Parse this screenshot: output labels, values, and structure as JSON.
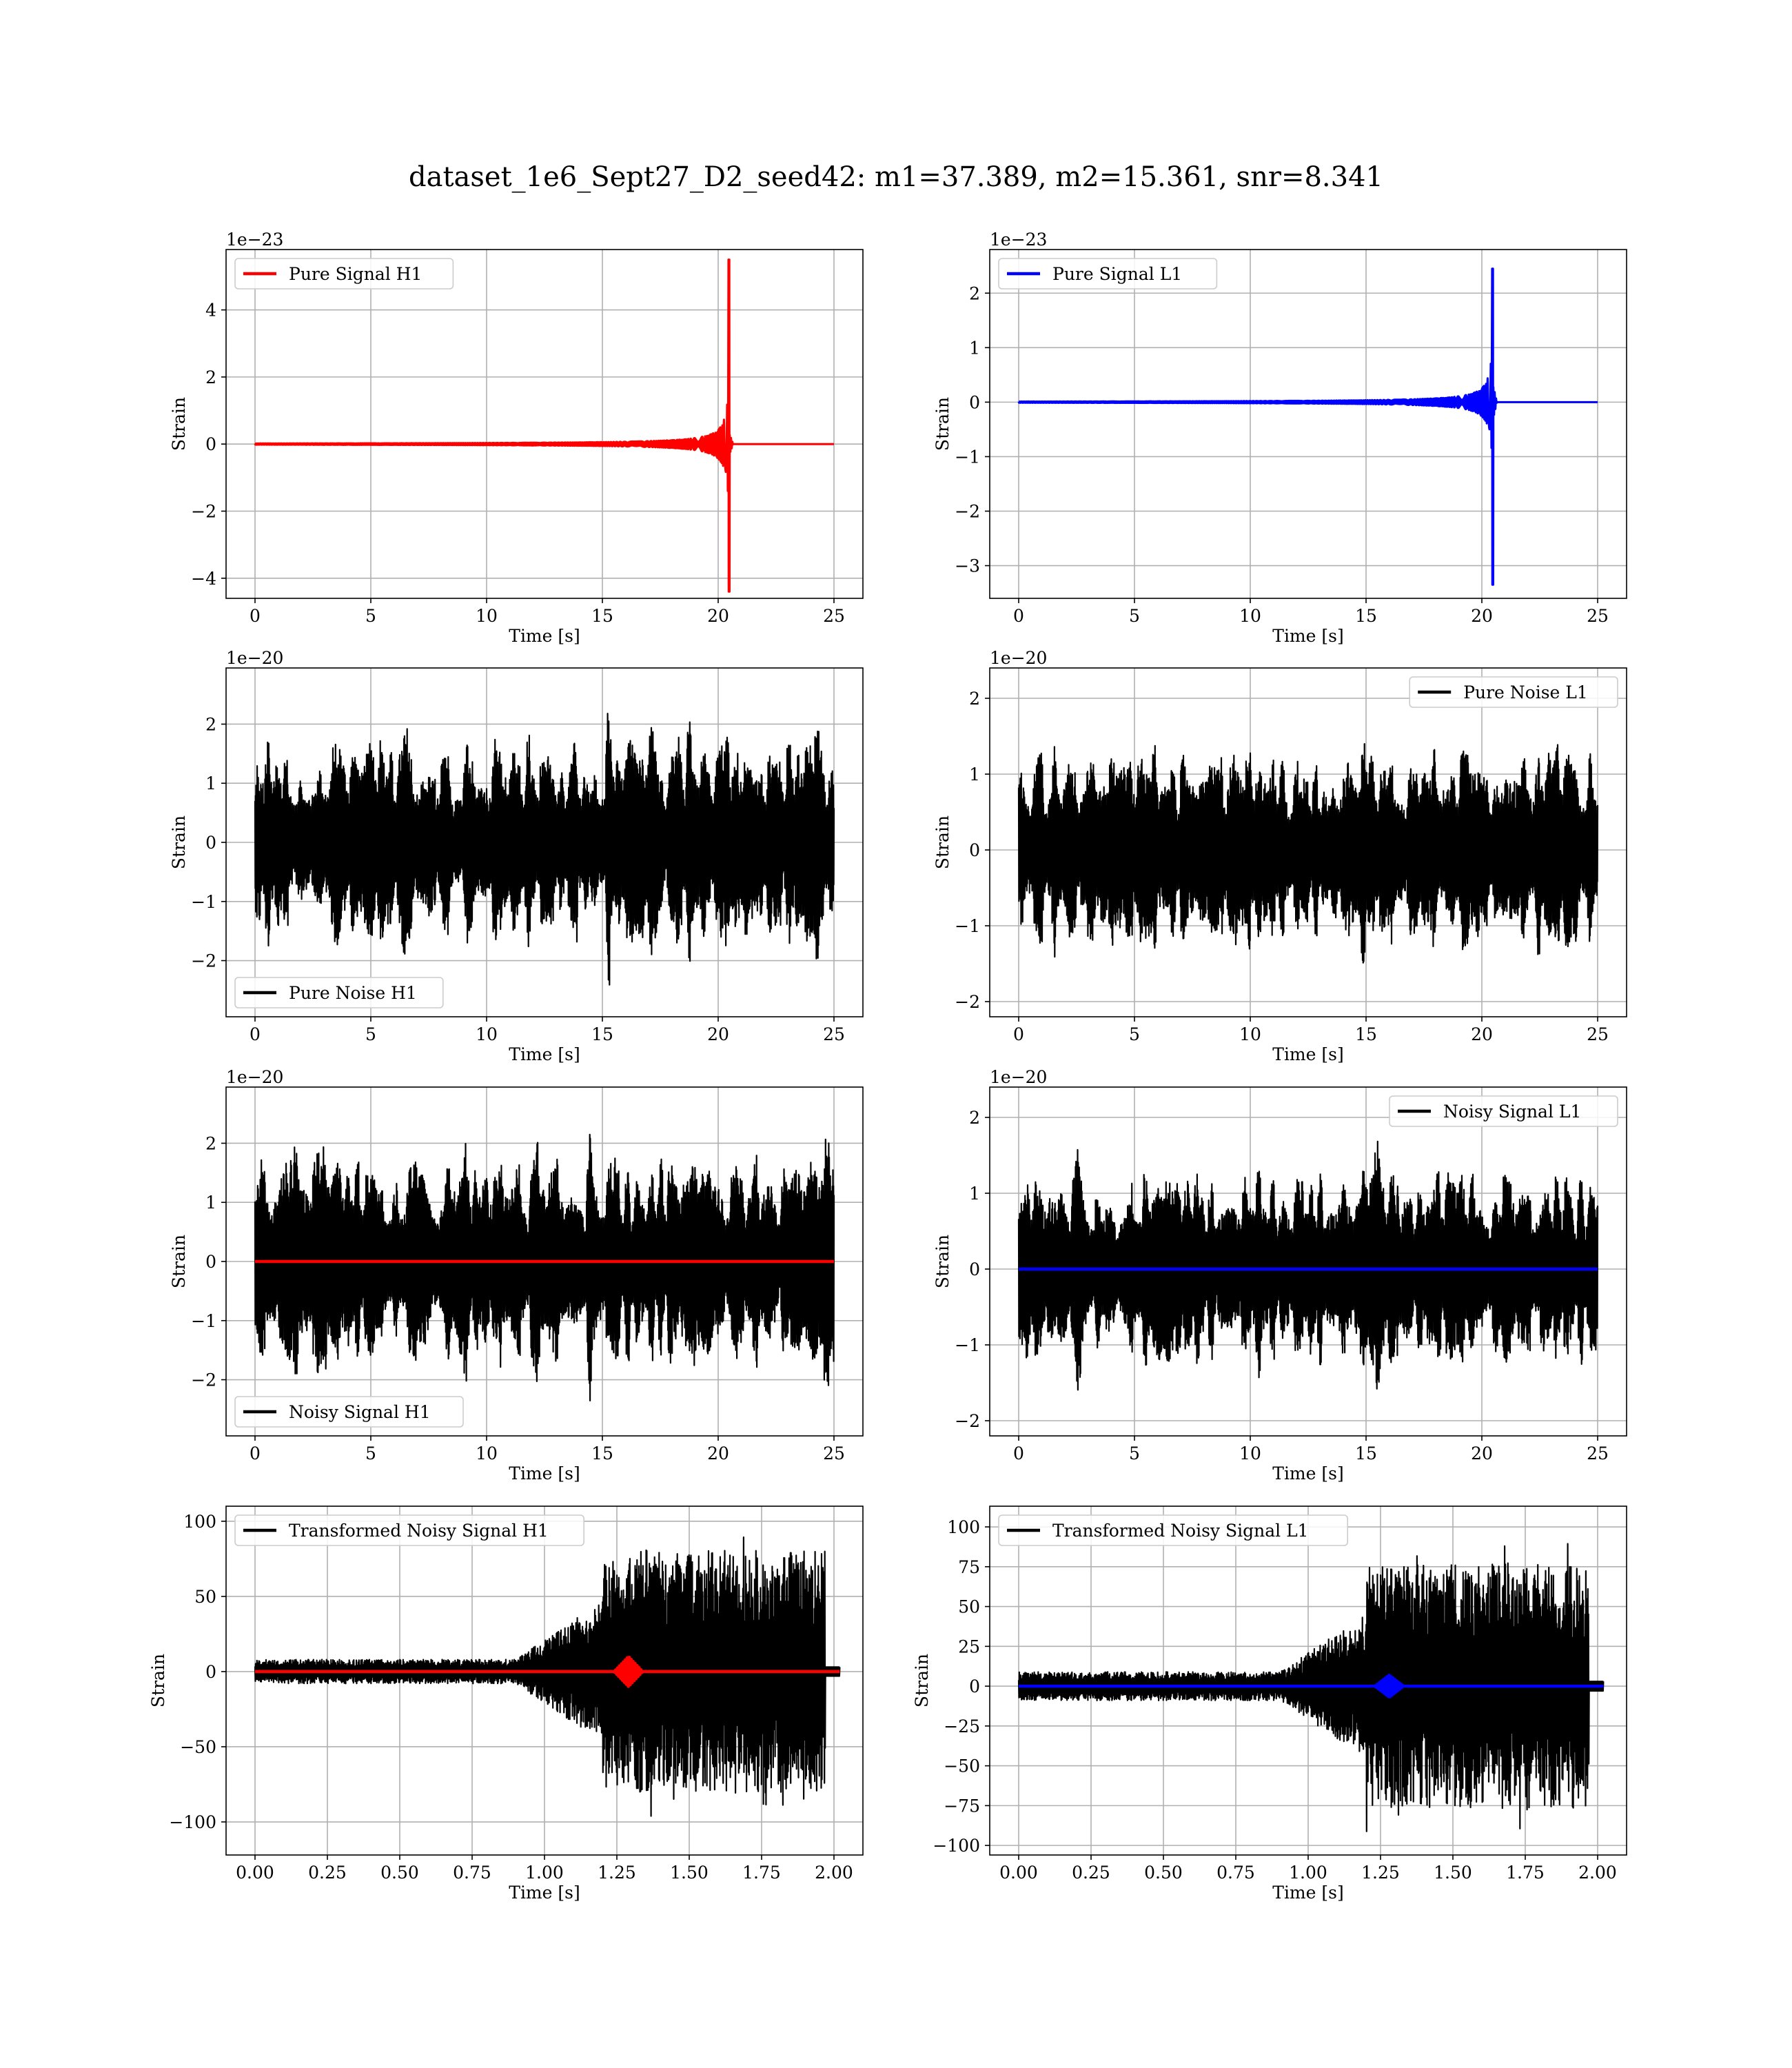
{
  "figure_title": "dataset_1e6_Sept27_D2_seed42: m1=37.389, m2=15.361, snr=8.341",
  "colors": {
    "h1": "#ff0000",
    "l1": "#0000ff",
    "noise": "#000000",
    "grid": "#b0b0b0"
  },
  "chart_data": [
    {
      "type": "line",
      "id": "pure_signal_h1",
      "xlabel": "Time [s]",
      "ylabel": "Strain",
      "offset_label": "1e−23",
      "xlim": [
        -1.25,
        26.25
      ],
      "ylim": [
        -4.6,
        5.8
      ],
      "xticks": [
        0,
        5,
        10,
        15,
        20,
        25
      ],
      "xtick_labels": [
        "0",
        "5",
        "10",
        "15",
        "20",
        "25"
      ],
      "yticks": [
        -4,
        -2,
        0,
        2,
        4
      ],
      "ytick_labels": [
        "−4",
        "−2",
        "0",
        "2",
        "4"
      ],
      "legend": {
        "loc": "upper-left",
        "entries": [
          {
            "label": "Pure Signal H1",
            "color": "#ff0000"
          }
        ]
      },
      "series": [
        {
          "name": "Pure Signal H1",
          "color": "#ff0000",
          "kind": "chirp",
          "x_start": 0,
          "x_end": 25,
          "merger": 20.5,
          "peak_pos": 5.5,
          "peak_neg": -4.4,
          "amp_scale": 1.0
        }
      ]
    },
    {
      "type": "line",
      "id": "pure_signal_l1",
      "xlabel": "Time [s]",
      "ylabel": "Strain",
      "offset_label": "1e−23",
      "xlim": [
        -1.25,
        26.25
      ],
      "ylim": [
        -3.6,
        2.8
      ],
      "xticks": [
        0,
        5,
        10,
        15,
        20,
        25
      ],
      "xtick_labels": [
        "0",
        "5",
        "10",
        "15",
        "20",
        "25"
      ],
      "yticks": [
        -3,
        -2,
        -1,
        0,
        1,
        2
      ],
      "ytick_labels": [
        "−3",
        "−2",
        "−1",
        "0",
        "1",
        "2"
      ],
      "legend": {
        "loc": "upper-left",
        "entries": [
          {
            "label": "Pure Signal L1",
            "color": "#0000ff"
          }
        ]
      },
      "series": [
        {
          "name": "Pure Signal L1",
          "color": "#0000ff",
          "kind": "chirp",
          "x_start": 0,
          "x_end": 25,
          "merger": 20.5,
          "peak_pos": 2.45,
          "peak_neg": -3.35,
          "amp_scale": 0.6
        }
      ]
    },
    {
      "type": "line",
      "id": "pure_noise_h1",
      "xlabel": "Time [s]",
      "ylabel": "Strain",
      "offset_label": "1e−20",
      "xlim": [
        -1.25,
        26.25
      ],
      "ylim": [
        -2.95,
        2.95
      ],
      "xticks": [
        0,
        5,
        10,
        15,
        20,
        25
      ],
      "xtick_labels": [
        "0",
        "5",
        "10",
        "15",
        "20",
        "25"
      ],
      "yticks": [
        -2,
        -1,
        0,
        1,
        2
      ],
      "ytick_labels": [
        "−2",
        "−1",
        "0",
        "1",
        "2"
      ],
      "legend": {
        "loc": "lower-left",
        "entries": [
          {
            "label": "Pure Noise H1",
            "color": "#000000"
          }
        ]
      },
      "series": [
        {
          "name": "Pure Noise H1",
          "color": "#000000",
          "kind": "noise",
          "x_start": 0,
          "x_end": 25,
          "max": 2.7,
          "min": -2.7,
          "typical": 1.3
        }
      ]
    },
    {
      "type": "line",
      "id": "pure_noise_l1",
      "xlabel": "Time [s]",
      "ylabel": "Strain",
      "offset_label": "1e−20",
      "xlim": [
        -1.25,
        26.25
      ],
      "ylim": [
        -2.2,
        2.4
      ],
      "xticks": [
        0,
        5,
        10,
        15,
        20,
        25
      ],
      "xtick_labels": [
        "0",
        "5",
        "10",
        "15",
        "20",
        "25"
      ],
      "yticks": [
        -2,
        -1,
        0,
        1,
        2
      ],
      "ytick_labels": [
        "−2",
        "−1",
        "0",
        "1",
        "2"
      ],
      "legend": {
        "loc": "upper-right",
        "entries": [
          {
            "label": "Pure Noise L1",
            "color": "#000000"
          }
        ]
      },
      "series": [
        {
          "name": "Pure Noise L1",
          "color": "#000000",
          "kind": "noise",
          "x_start": 0,
          "x_end": 25,
          "max": 2.15,
          "min": -1.98,
          "typical": 0.95
        }
      ]
    },
    {
      "type": "line",
      "id": "noisy_signal_h1",
      "xlabel": "Time [s]",
      "ylabel": "Strain",
      "offset_label": "1e−20",
      "xlim": [
        -1.25,
        26.25
      ],
      "ylim": [
        -2.95,
        2.95
      ],
      "xticks": [
        0,
        5,
        10,
        15,
        20,
        25
      ],
      "xtick_labels": [
        "0",
        "5",
        "10",
        "15",
        "20",
        "25"
      ],
      "yticks": [
        -2,
        -1,
        0,
        1,
        2
      ],
      "ytick_labels": [
        "−2",
        "−1",
        "0",
        "1",
        "2"
      ],
      "legend": {
        "loc": "lower-left",
        "entries": [
          {
            "label": "Noisy Signal H1",
            "color": "#000000"
          }
        ]
      },
      "series": [
        {
          "name": "Noisy Signal H1",
          "color": "#000000",
          "kind": "noise",
          "x_start": 0,
          "x_end": 25,
          "max": 2.7,
          "min": -2.7,
          "typical": 1.3
        },
        {
          "color": "#ff0000",
          "kind": "flat",
          "x_start": 0,
          "x_end": 25,
          "value": 0
        }
      ]
    },
    {
      "type": "line",
      "id": "noisy_signal_l1",
      "xlabel": "Time [s]",
      "ylabel": "Strain",
      "offset_label": "1e−20",
      "xlim": [
        -1.25,
        26.25
      ],
      "ylim": [
        -2.2,
        2.4
      ],
      "xticks": [
        0,
        5,
        10,
        15,
        20,
        25
      ],
      "xtick_labels": [
        "0",
        "5",
        "10",
        "15",
        "20",
        "25"
      ],
      "yticks": [
        -2,
        -1,
        0,
        1,
        2
      ],
      "ytick_labels": [
        "−2",
        "−1",
        "0",
        "1",
        "2"
      ],
      "legend": {
        "loc": "upper-right",
        "entries": [
          {
            "label": "Noisy Signal L1",
            "color": "#000000"
          }
        ]
      },
      "series": [
        {
          "name": "Noisy Signal L1",
          "color": "#000000",
          "kind": "noise",
          "x_start": 0,
          "x_end": 25,
          "max": 2.15,
          "min": -1.98,
          "typical": 0.95
        },
        {
          "color": "#0000ff",
          "kind": "flat",
          "x_start": 0,
          "x_end": 25,
          "value": 0
        }
      ]
    },
    {
      "type": "line",
      "id": "transformed_noisy_signal_h1",
      "xlabel": "Time [s]",
      "ylabel": "Strain",
      "offset_label": "",
      "xlim": [
        -0.1,
        2.1
      ],
      "ylim": [
        -122,
        110
      ],
      "xticks": [
        0,
        0.25,
        0.5,
        0.75,
        1.0,
        1.25,
        1.5,
        1.75,
        2.0
      ],
      "xtick_labels": [
        "0.00",
        "0.25",
        "0.50",
        "0.75",
        "1.00",
        "1.25",
        "1.50",
        "1.75",
        "2.00"
      ],
      "yticks": [
        -100,
        -50,
        0,
        50,
        100
      ],
      "ytick_labels": [
        "−100",
        "−50",
        "0",
        "50",
        "100"
      ],
      "legend": {
        "loc": "upper-left",
        "entries": [
          {
            "label": "Transformed Noisy Signal H1",
            "color": "#000000"
          }
        ]
      },
      "series": [
        {
          "name": "Transformed Noisy Signal H1",
          "color": "#000000",
          "kind": "burst",
          "x_start": 0,
          "x_end": 2.02,
          "onset": 1.2,
          "end": 1.97,
          "low": 8,
          "high": 95,
          "max": 95,
          "min": -117
        },
        {
          "color": "#ff0000",
          "kind": "blip",
          "x_start": 0,
          "x_end": 2.02,
          "center": 1.29,
          "amp": 10
        }
      ]
    },
    {
      "type": "line",
      "id": "transformed_noisy_signal_l1",
      "xlabel": "Time [s]",
      "ylabel": "Strain",
      "offset_label": "",
      "xlim": [
        -0.1,
        2.1
      ],
      "ylim": [
        -106,
        113
      ],
      "xticks": [
        0,
        0.25,
        0.5,
        0.75,
        1.0,
        1.25,
        1.5,
        1.75,
        2.0
      ],
      "xtick_labels": [
        "0.00",
        "0.25",
        "0.50",
        "0.75",
        "1.00",
        "1.25",
        "1.50",
        "1.75",
        "2.00"
      ],
      "yticks": [
        -100,
        -75,
        -50,
        -25,
        0,
        25,
        50,
        75,
        100
      ],
      "ytick_labels": [
        "−100",
        "−75",
        "−50",
        "−25",
        "0",
        "25",
        "50",
        "75",
        "100"
      ],
      "legend": {
        "loc": "upper-left",
        "entries": [
          {
            "label": "Transformed Noisy Signal L1",
            "color": "#000000"
          }
        ]
      },
      "series": [
        {
          "name": "Transformed Noisy Signal L1",
          "color": "#000000",
          "kind": "burst",
          "x_start": 0,
          "x_end": 2.02,
          "onset": 1.2,
          "end": 1.97,
          "low": 9,
          "high": 90,
          "max": 103,
          "min": -98
        },
        {
          "color": "#0000ff",
          "kind": "blip",
          "x_start": 0,
          "x_end": 2.02,
          "center": 1.28,
          "amp": 7
        }
      ]
    }
  ]
}
